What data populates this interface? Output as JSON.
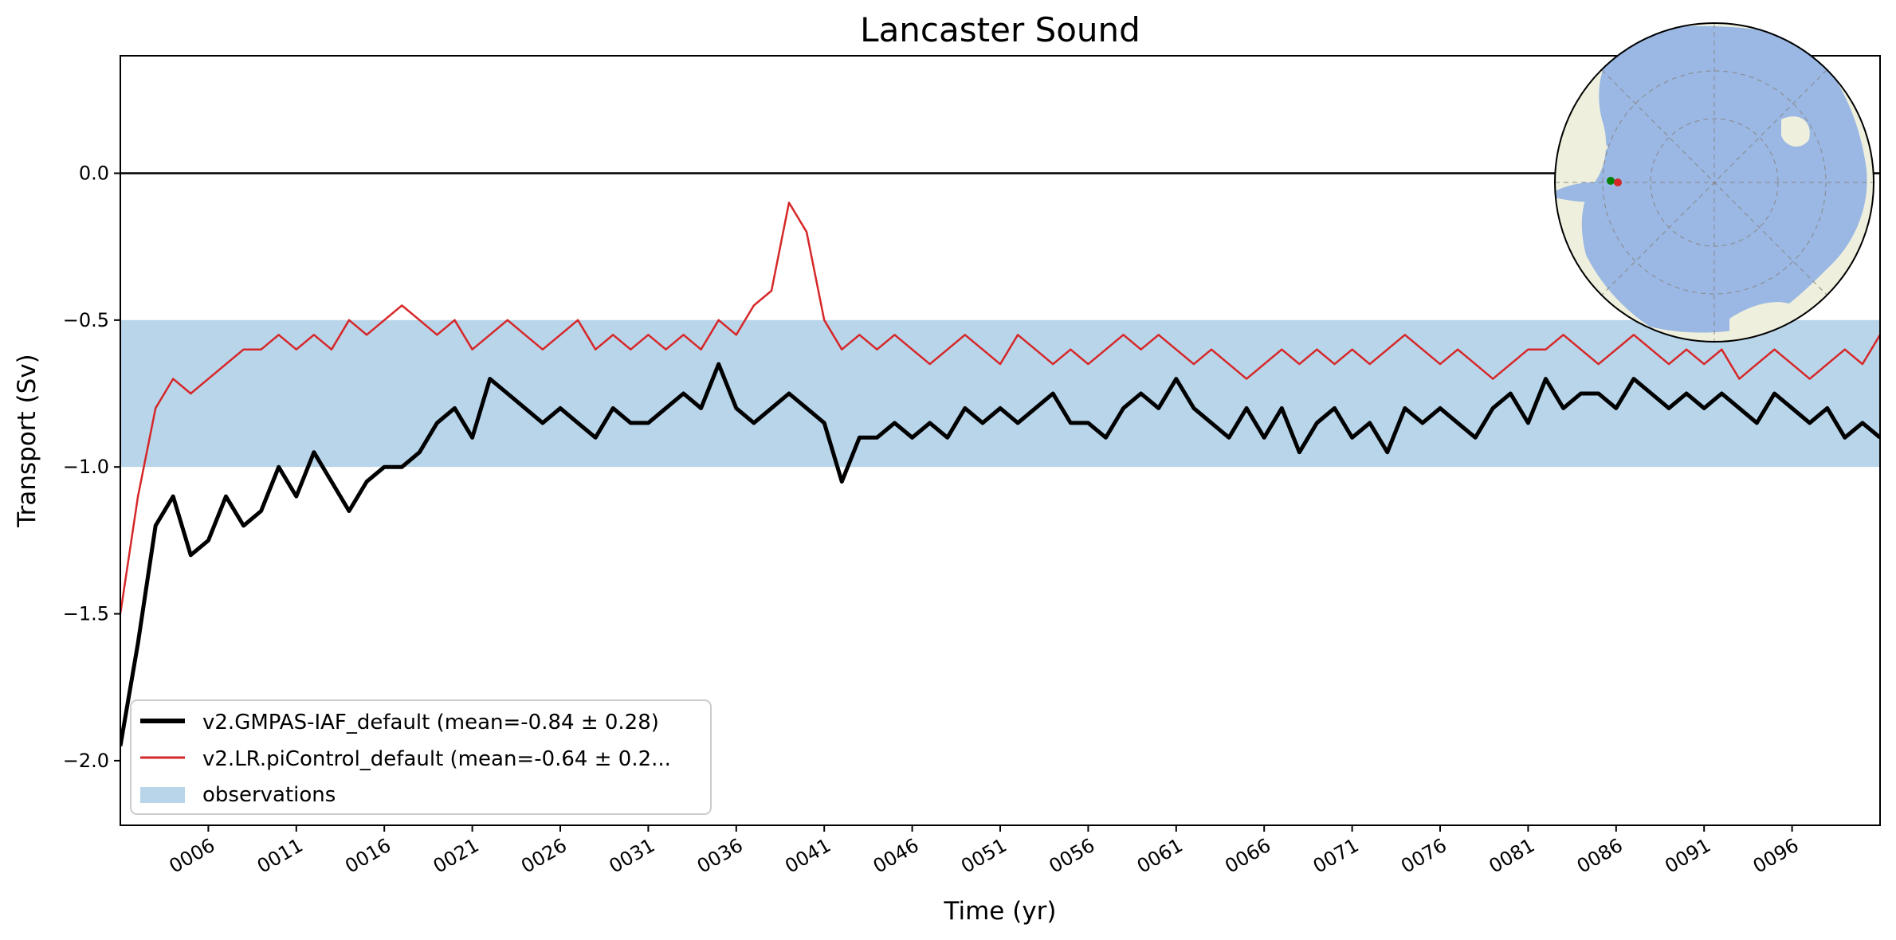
{
  "chart_data": {
    "type": "line",
    "title": "Lancaster Sound",
    "xlabel": "Time (yr)",
    "ylabel": "Transport (Sv)",
    "xlim": [
      1,
      101
    ],
    "ylim": [
      -2.22,
      0.4
    ],
    "yticks": [
      0.0,
      -0.5,
      -1.0,
      -1.5,
      -2.0
    ],
    "ytick_labels": [
      "0.0",
      "−0.5",
      "−1.0",
      "−1.5",
      "−2.0"
    ],
    "xticks": [
      6,
      11,
      16,
      21,
      26,
      31,
      36,
      41,
      46,
      51,
      56,
      61,
      66,
      71,
      76,
      81,
      86,
      91,
      96
    ],
    "xtick_labels": [
      "0006",
      "0011",
      "0016",
      "0021",
      "0026",
      "0031",
      "0036",
      "0041",
      "0046",
      "0051",
      "0056",
      "0061",
      "0066",
      "0071",
      "0076",
      "0081",
      "0086",
      "0091",
      "0096"
    ],
    "zero_line": 0.0,
    "observations": {
      "label": "observations",
      "low": -1.0,
      "high": -0.5,
      "color": "#b9d5ea"
    },
    "series": [
      {
        "name": "v2.GMPAS-IAF_default (mean=-0.84 ± 0.28)",
        "color": "#000000",
        "x": [
          1,
          2,
          3,
          4,
          5,
          6,
          7,
          8,
          9,
          10,
          11,
          12,
          13,
          14,
          15,
          16,
          17,
          18,
          19,
          20,
          21,
          22,
          23,
          24,
          25,
          26,
          27,
          28,
          29,
          30,
          31,
          32,
          33,
          34,
          35,
          36,
          37,
          38,
          39,
          40,
          41,
          42,
          43,
          44,
          45,
          46,
          47,
          48,
          49,
          50,
          51,
          52,
          53,
          54,
          55,
          56,
          57,
          58,
          59,
          60,
          61,
          62,
          63,
          64,
          65,
          66,
          67,
          68,
          69,
          70,
          71,
          72,
          73,
          74,
          75,
          76,
          77,
          78,
          79,
          80,
          81,
          82,
          83,
          84,
          85,
          86,
          87,
          88,
          89,
          90,
          91,
          92,
          93,
          94,
          95,
          96,
          97,
          98,
          99,
          100,
          101
        ],
        "values": [
          -1.95,
          -1.6,
          -1.2,
          -1.1,
          -1.3,
          -1.25,
          -1.1,
          -1.2,
          -1.15,
          -1.0,
          -1.1,
          -0.95,
          -1.05,
          -1.15,
          -1.05,
          -1.0,
          -1.0,
          -0.95,
          -0.85,
          -0.8,
          -0.9,
          -0.7,
          -0.75,
          -0.8,
          -0.85,
          -0.8,
          -0.85,
          -0.9,
          -0.8,
          -0.85,
          -0.85,
          -0.8,
          -0.75,
          -0.8,
          -0.65,
          -0.8,
          -0.85,
          -0.8,
          -0.75,
          -0.8,
          -0.85,
          -1.05,
          -0.9,
          -0.9,
          -0.85,
          -0.9,
          -0.85,
          -0.9,
          -0.8,
          -0.85,
          -0.8,
          -0.85,
          -0.8,
          -0.75,
          -0.85,
          -0.85,
          -0.9,
          -0.8,
          -0.75,
          -0.8,
          -0.7,
          -0.8,
          -0.85,
          -0.9,
          -0.8,
          -0.9,
          -0.8,
          -0.95,
          -0.85,
          -0.8,
          -0.9,
          -0.85,
          -0.95,
          -0.8,
          -0.85,
          -0.8,
          -0.85,
          -0.9,
          -0.8,
          -0.75,
          -0.85,
          -0.7,
          -0.8,
          -0.75,
          -0.75,
          -0.8,
          -0.7,
          -0.75,
          -0.8,
          -0.75,
          -0.8,
          -0.75,
          -0.8,
          -0.85,
          -0.75,
          -0.8,
          -0.85,
          -0.8,
          -0.9,
          -0.85,
          -0.9
        ]
      },
      {
        "name": "v2.LR.piControl_default (mean=-0.64 ± 0.2...",
        "color": "#d62728",
        "x": [
          1,
          2,
          3,
          4,
          5,
          6,
          7,
          8,
          9,
          10,
          11,
          12,
          13,
          14,
          15,
          16,
          17,
          18,
          19,
          20,
          21,
          22,
          23,
          24,
          25,
          26,
          27,
          28,
          29,
          30,
          31,
          32,
          33,
          34,
          35,
          36,
          37,
          38,
          39,
          40,
          41,
          42,
          43,
          44,
          45,
          46,
          47,
          48,
          49,
          50,
          51,
          52,
          53,
          54,
          55,
          56,
          57,
          58,
          59,
          60,
          61,
          62,
          63,
          64,
          65,
          66,
          67,
          68,
          69,
          70,
          71,
          72,
          73,
          74,
          75,
          76,
          77,
          78,
          79,
          80,
          81,
          82,
          83,
          84,
          85,
          86,
          87,
          88,
          89,
          90,
          91,
          92,
          93,
          94,
          95,
          96,
          97,
          98,
          99,
          100,
          101
        ],
        "values": [
          -1.5,
          -1.1,
          -0.8,
          -0.7,
          -0.75,
          -0.7,
          -0.65,
          -0.6,
          -0.6,
          -0.55,
          -0.6,
          -0.55,
          -0.6,
          -0.5,
          -0.55,
          -0.5,
          -0.45,
          -0.5,
          -0.55,
          -0.5,
          -0.6,
          -0.55,
          -0.5,
          -0.55,
          -0.6,
          -0.55,
          -0.5,
          -0.6,
          -0.55,
          -0.6,
          -0.55,
          -0.6,
          -0.55,
          -0.6,
          -0.5,
          -0.55,
          -0.45,
          -0.4,
          -0.1,
          -0.2,
          -0.5,
          -0.6,
          -0.55,
          -0.6,
          -0.55,
          -0.6,
          -0.65,
          -0.6,
          -0.55,
          -0.6,
          -0.65,
          -0.55,
          -0.6,
          -0.65,
          -0.6,
          -0.65,
          -0.6,
          -0.55,
          -0.6,
          -0.55,
          -0.6,
          -0.65,
          -0.6,
          -0.65,
          -0.7,
          -0.65,
          -0.6,
          -0.65,
          -0.6,
          -0.65,
          -0.6,
          -0.65,
          -0.6,
          -0.55,
          -0.6,
          -0.65,
          -0.6,
          -0.65,
          -0.7,
          -0.65,
          -0.6,
          -0.6,
          -0.55,
          -0.6,
          -0.65,
          -0.6,
          -0.55,
          -0.6,
          -0.65,
          -0.6,
          -0.65,
          -0.6,
          -0.7,
          -0.65,
          -0.6,
          -0.65,
          -0.7,
          -0.65,
          -0.6,
          -0.65,
          -0.55
        ]
      }
    ],
    "legend_location": "lower-left",
    "inset": {
      "type": "north-polar-map",
      "marker_colors": [
        "#008000",
        "#d62728"
      ]
    }
  }
}
